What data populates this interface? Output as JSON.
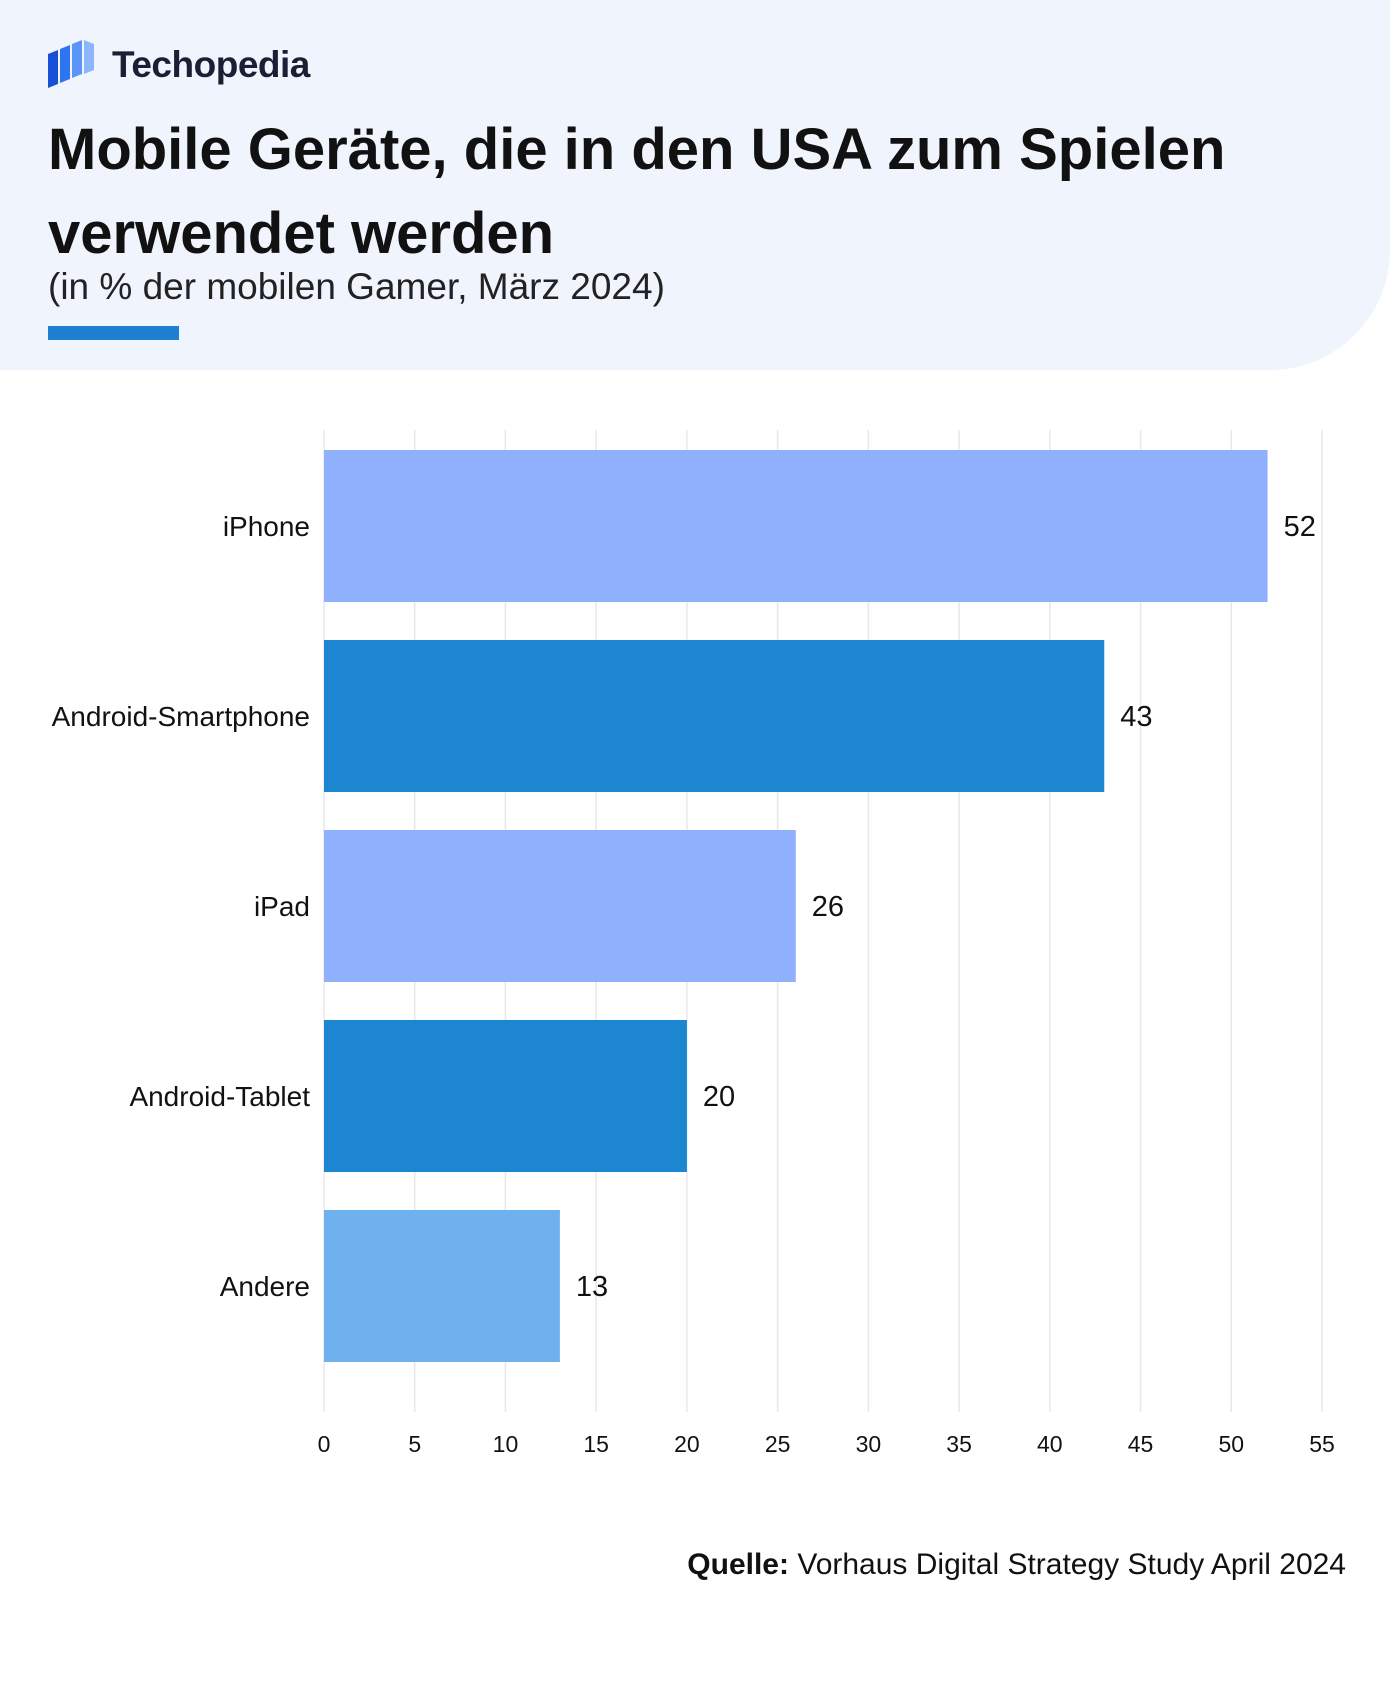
{
  "brand": {
    "name": "Techopedia",
    "logo_icon": "techopedia-logo-icon"
  },
  "title": "Mobile Geräte, die in den USA zum Spielen verwendet werden",
  "subtitle": "(in % der mobilen Gamer, März 2024)",
  "colors": {
    "header_bg": "#f0f4fd",
    "accent": "#1f7fd2",
    "bar_light": "#8fb0fc",
    "bar_dark": "#1d86d0",
    "bar_other": "#6fb1ee",
    "grid": "#e6e8ee"
  },
  "chart_data": {
    "type": "bar",
    "orientation": "horizontal",
    "categories": [
      "iPhone",
      "Android-Smartphone",
      "iPad",
      "Android-Tablet",
      "Andere"
    ],
    "values": [
      52,
      43,
      26,
      20,
      13
    ],
    "bar_colors": [
      "#8fb0fc",
      "#1d86d0",
      "#8fb0fc",
      "#1d86d0",
      "#6fb1ee"
    ],
    "value_labels": [
      "52",
      "43",
      "26",
      "20",
      "13"
    ],
    "xlim": [
      0,
      55
    ],
    "xticks": [
      0,
      5,
      10,
      15,
      20,
      25,
      30,
      35,
      40,
      45,
      50,
      55
    ],
    "xlabel": "",
    "ylabel": "",
    "grid": true
  },
  "source": {
    "label": "Quelle:",
    "text": " Vorhaus Digital Strategy Study April 2024"
  }
}
